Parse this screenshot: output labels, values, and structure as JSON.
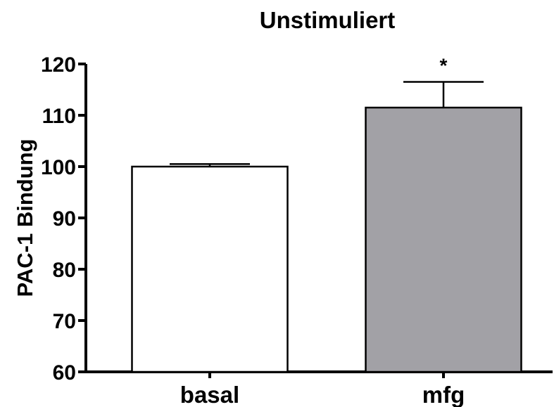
{
  "chart_data": {
    "type": "bar",
    "title": "Unstimuliert",
    "xlabel": "",
    "ylabel": "PAC-1 Bindung",
    "categories": [
      "basal",
      "mfg"
    ],
    "values": [
      100,
      111.5
    ],
    "errors": [
      0.5,
      5
    ],
    "significance": [
      "",
      "*"
    ],
    "bar_colors": [
      "#ffffff",
      "#a2a1a6"
    ],
    "ylim": [
      60,
      120
    ],
    "yticks": [
      60,
      70,
      80,
      90,
      100,
      110,
      120
    ],
    "grid": false,
    "legend": "none"
  }
}
